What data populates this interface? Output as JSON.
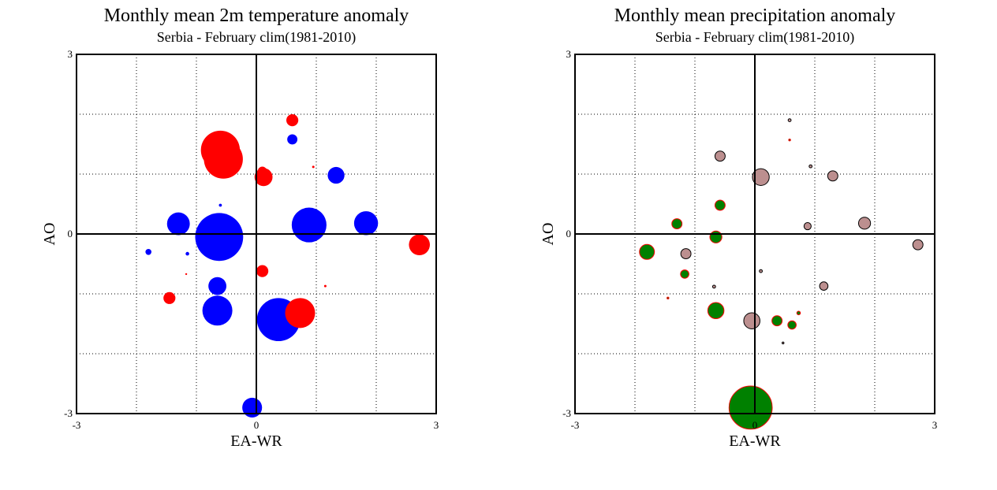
{
  "chart_data": [
    {
      "type": "scatter",
      "title": "Monthly mean 2m temperature anomaly",
      "subtitle": "Serbia - February  clim(1981-2010)",
      "xlabel": "EA-WR",
      "ylabel": "AO",
      "xlim": [
        -3,
        3
      ],
      "ylim": [
        -3,
        3
      ],
      "x_tick_labels": [
        "-3",
        "0",
        "3"
      ],
      "y_tick_labels": [
        "-3",
        "0",
        "3"
      ],
      "grid": true,
      "colors": {
        "positive": "#ff0000",
        "negative": "#0000ff"
      },
      "points": [
        {
          "x": -0.6,
          "y": 1.4,
          "size": 0.65,
          "color": "#ff0000"
        },
        {
          "x": -0.55,
          "y": 1.25,
          "size": 0.65,
          "color": "#ff0000"
        },
        {
          "x": 0.6,
          "y": 1.9,
          "size": 0.2,
          "color": "#ff0000"
        },
        {
          "x": 0.6,
          "y": 1.58,
          "size": 0.17,
          "color": "#0000ff"
        },
        {
          "x": 0.95,
          "y": 1.12,
          "size": 0.04,
          "color": "#ff0000"
        },
        {
          "x": 0.1,
          "y": 1.05,
          "size": 0.15,
          "color": "#ff0000"
        },
        {
          "x": 0.12,
          "y": 0.95,
          "size": 0.3,
          "color": "#ff0000"
        },
        {
          "x": 1.33,
          "y": 0.98,
          "size": 0.28,
          "color": "#0000ff"
        },
        {
          "x": -0.6,
          "y": 0.48,
          "size": 0.05,
          "color": "#0000ff"
        },
        {
          "x": -1.3,
          "y": 0.17,
          "size": 0.38,
          "color": "#0000ff"
        },
        {
          "x": -0.62,
          "y": -0.05,
          "size": 0.8,
          "color": "#0000ff"
        },
        {
          "x": 0.88,
          "y": 0.15,
          "size": 0.58,
          "color": "#0000ff"
        },
        {
          "x": 1.83,
          "y": 0.18,
          "size": 0.4,
          "color": "#0000ff"
        },
        {
          "x": 2.72,
          "y": -0.18,
          "size": 0.35,
          "color": "#ff0000"
        },
        {
          "x": -1.8,
          "y": -0.3,
          "size": 0.1,
          "color": "#0000ff"
        },
        {
          "x": -1.15,
          "y": -0.33,
          "size": 0.06,
          "color": "#0000ff"
        },
        {
          "x": -1.17,
          "y": -0.67,
          "size": 0.02,
          "color": "#ff0000"
        },
        {
          "x": 0.1,
          "y": -0.62,
          "size": 0.2,
          "color": "#ff0000"
        },
        {
          "x": -0.65,
          "y": -0.87,
          "size": 0.3,
          "color": "#0000ff"
        },
        {
          "x": 1.15,
          "y": -0.87,
          "size": 0.04,
          "color": "#ff0000"
        },
        {
          "x": -1.45,
          "y": -1.07,
          "size": 0.2,
          "color": "#ff0000"
        },
        {
          "x": -0.65,
          "y": -1.28,
          "size": 0.5,
          "color": "#0000ff"
        },
        {
          "x": 0.37,
          "y": -1.43,
          "size": 0.72,
          "color": "#0000ff"
        },
        {
          "x": 0.73,
          "y": -1.32,
          "size": 0.5,
          "color": "#ff0000"
        },
        {
          "x": -0.07,
          "y": -2.9,
          "size": 0.33,
          "color": "#0000ff"
        }
      ]
    },
    {
      "type": "scatter",
      "title": "Monthly mean precipitation anomaly",
      "subtitle": "Serbia - February  clim(1981-2010)",
      "xlabel": "EA-WR",
      "ylabel": "AO",
      "xlim": [
        -3,
        3
      ],
      "ylim": [
        -3,
        3
      ],
      "x_tick_labels": [
        "-3",
        "0",
        "3"
      ],
      "y_tick_labels": [
        "-3",
        "0",
        "3"
      ],
      "grid": true,
      "colors": {
        "wet": "#008000",
        "wet_edge": "#ff0000",
        "dry": "#bc8f8f",
        "dry_edge": "#000000"
      },
      "points": [
        {
          "x": 0.58,
          "y": 1.9,
          "size": 0.05,
          "color": "#bc8f8f",
          "edge": "#000000"
        },
        {
          "x": 0.58,
          "y": 1.57,
          "size": 0.02,
          "color": "#008000",
          "edge": "#ff0000"
        },
        {
          "x": -0.58,
          "y": 1.3,
          "size": 0.17,
          "color": "#bc8f8f",
          "edge": "#000000"
        },
        {
          "x": 0.93,
          "y": 1.13,
          "size": 0.05,
          "color": "#bc8f8f",
          "edge": "#000000"
        },
        {
          "x": 0.1,
          "y": 0.95,
          "size": 0.28,
          "color": "#bc8f8f",
          "edge": "#000000"
        },
        {
          "x": 1.3,
          "y": 0.97,
          "size": 0.17,
          "color": "#bc8f8f",
          "edge": "#000000"
        },
        {
          "x": -0.58,
          "y": 0.48,
          "size": 0.17,
          "color": "#008000",
          "edge": "#ff0000"
        },
        {
          "x": -1.3,
          "y": 0.17,
          "size": 0.17,
          "color": "#008000",
          "edge": "#ff0000"
        },
        {
          "x": 0.88,
          "y": 0.13,
          "size": 0.12,
          "color": "#bc8f8f",
          "edge": "#000000"
        },
        {
          "x": 1.83,
          "y": 0.18,
          "size": 0.2,
          "color": "#bc8f8f",
          "edge": "#000000"
        },
        {
          "x": -0.65,
          "y": -0.05,
          "size": 0.2,
          "color": "#008000",
          "edge": "#ff0000"
        },
        {
          "x": 2.72,
          "y": -0.18,
          "size": 0.17,
          "color": "#bc8f8f",
          "edge": "#000000"
        },
        {
          "x": -1.8,
          "y": -0.3,
          "size": 0.25,
          "color": "#008000",
          "edge": "#ff0000"
        },
        {
          "x": -1.15,
          "y": -0.33,
          "size": 0.17,
          "color": "#bc8f8f",
          "edge": "#000000"
        },
        {
          "x": -1.17,
          "y": -0.67,
          "size": 0.14,
          "color": "#008000",
          "edge": "#ff0000"
        },
        {
          "x": 0.1,
          "y": -0.62,
          "size": 0.05,
          "color": "#bc8f8f",
          "edge": "#000000"
        },
        {
          "x": -0.68,
          "y": -0.88,
          "size": 0.05,
          "color": "#bc8f8f",
          "edge": "#000000"
        },
        {
          "x": 1.15,
          "y": -0.87,
          "size": 0.14,
          "color": "#bc8f8f",
          "edge": "#000000"
        },
        {
          "x": -1.45,
          "y": -1.07,
          "size": 0.02,
          "color": "#008000",
          "edge": "#ff0000"
        },
        {
          "x": -0.65,
          "y": -1.28,
          "size": 0.27,
          "color": "#008000",
          "edge": "#ff0000"
        },
        {
          "x": -0.05,
          "y": -1.45,
          "size": 0.27,
          "color": "#bc8f8f",
          "edge": "#000000"
        },
        {
          "x": 0.37,
          "y": -1.45,
          "size": 0.17,
          "color": "#008000",
          "edge": "#ff0000"
        },
        {
          "x": 0.62,
          "y": -1.52,
          "size": 0.14,
          "color": "#008000",
          "edge": "#ff0000"
        },
        {
          "x": 0.73,
          "y": -1.32,
          "size": 0.06,
          "color": "#008000",
          "edge": "#ff0000"
        },
        {
          "x": 0.47,
          "y": -1.82,
          "size": 0.03,
          "color": "#bc8f8f",
          "edge": "#000000"
        },
        {
          "x": -0.07,
          "y": -2.9,
          "size": 0.72,
          "color": "#008000",
          "edge": "#ff0000"
        }
      ]
    }
  ]
}
